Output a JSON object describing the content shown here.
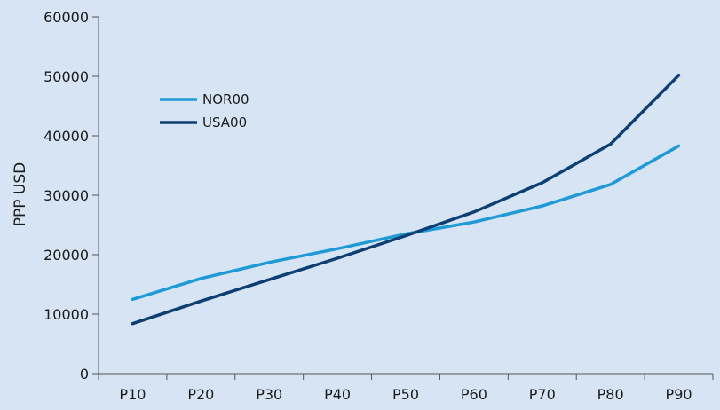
{
  "colors": {
    "background": "#d6e4f3",
    "axis": "#555555",
    "text": "#1a1a1a"
  },
  "chart_data": {
    "type": "line",
    "categories": [
      "P10",
      "P20",
      "P30",
      "P40",
      "P50",
      "P60",
      "P70",
      "P80",
      "P90"
    ],
    "ylabel": "PPP USD",
    "xlabel": "",
    "ylim": [
      0,
      60000
    ],
    "yticks": [
      0,
      10000,
      20000,
      30000,
      40000,
      50000,
      60000
    ],
    "grid": false,
    "legend_position": "upper-left",
    "series": [
      {
        "name": "NOR00",
        "color": "#1f9ad6",
        "values": [
          12500,
          16000,
          18700,
          21000,
          23500,
          25500,
          28200,
          31800,
          38300
        ]
      },
      {
        "name": "USA00",
        "color": "#0d3f73",
        "values": [
          8400,
          12200,
          15800,
          19400,
          23200,
          27200,
          32100,
          38600,
          50200
        ]
      }
    ]
  }
}
